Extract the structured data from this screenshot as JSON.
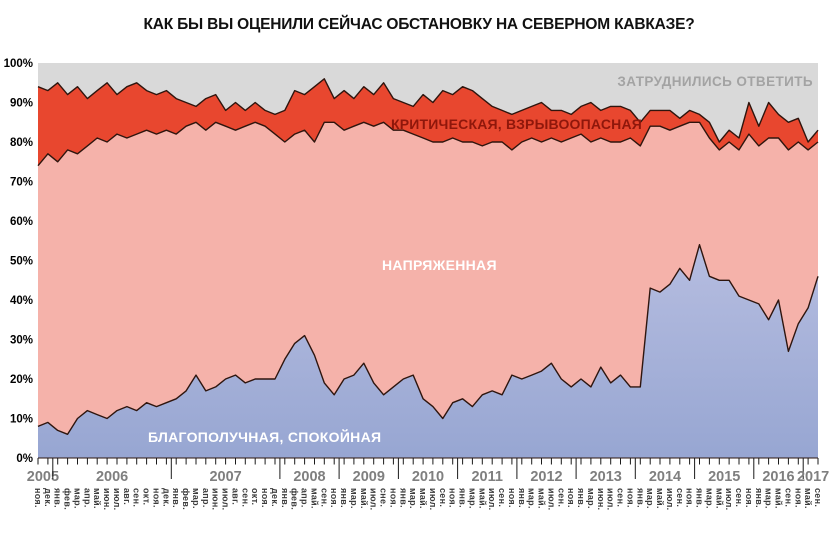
{
  "title": "КАК БЫ ВЫ ОЦЕНИЛИ СЕЙЧАС ОБСТАНОВКУ НА СЕВЕРНОМ КАВКАЗЕ?",
  "colors": {
    "background": "#ffffff",
    "no_answer_fill": "#d9d9d9",
    "critical_fill": "#e8472f",
    "tense_fill": "#f5b2aa",
    "calm_fill_top": "#b6bde0",
    "calm_fill_bottom": "#97a6d2",
    "outline": "#2e150e",
    "tick_color": "#1a1a1a",
    "title_color": "#111111",
    "year_label_color": "#7f7f7f",
    "month_label_color": "#3c3c3c",
    "y_axis_label_color": "#000000",
    "no_answer_label_color": "#a3a3a3",
    "critical_label_color": "#8f170b",
    "area_label_white": "#ffffff"
  },
  "chart_data": {
    "type": "area",
    "stacked": true,
    "ylim": [
      0,
      100
    ],
    "grid": false,
    "y_ticks": [
      "100%",
      "90%",
      "80%",
      "70%",
      "60%",
      "50%",
      "40%",
      "30%",
      "20%",
      "10%",
      "0%"
    ],
    "remainder_label": "ЗАТРУДНИЛИСЬ ОТВЕТИТЬ",
    "years": [
      {
        "label": "2005",
        "months": 2
      },
      {
        "label": "2006",
        "months": 12
      },
      {
        "label": "2007",
        "months": 11
      },
      {
        "label": "2008",
        "months": 6
      },
      {
        "label": "2009",
        "months": 6
      },
      {
        "label": "2010",
        "months": 6
      },
      {
        "label": "2011",
        "months": 6
      },
      {
        "label": "2012",
        "months": 6
      },
      {
        "label": "2013",
        "months": 6
      },
      {
        "label": "2014",
        "months": 6
      },
      {
        "label": "2015",
        "months": 6
      },
      {
        "label": "2016",
        "months": 5
      },
      {
        "label": "2017",
        "months": 2
      }
    ],
    "months": [
      "ноя.",
      "дек.",
      "янв.",
      "фев.",
      "мар.",
      "апр.",
      "май.",
      "июн.",
      "июл.",
      "авг.",
      "сен.",
      "окт.",
      "ноя.",
      "дек.",
      "янв.",
      "фев.",
      "мар.",
      "апр.",
      "июн.",
      "июл.",
      "авг.",
      "сен.",
      "окт.",
      "ноя.",
      "дек.",
      "янв.",
      "фев.",
      "апр.",
      "май.",
      "сен.",
      "ноя.",
      "янв.",
      "мар.",
      "май.",
      "июл.",
      "сне.",
      "ноя.",
      "янв.",
      "мар.",
      "май.",
      "июл.",
      "сен.",
      "ноя.",
      "янв.",
      "мар.",
      "май.",
      "июл.",
      "сен.",
      "ноя.",
      "янв.",
      "мар.",
      "май.",
      "июл.",
      "сен.",
      "ноя.",
      "янв.",
      "мар.",
      "июн.",
      "июл.",
      "сен.",
      "ноя.",
      "янв.",
      "мар.",
      "май.",
      "июл.",
      "сен.",
      "ноя.",
      "янв.",
      "мар.",
      "май.",
      "июл.",
      "сен.",
      "ноя.",
      "янв.",
      "мар.",
      "май.",
      "сен.",
      "ноя.",
      "май.",
      "сен."
    ],
    "series": [
      {
        "name": "БЛАГОПОЛУЧНАЯ, СПОКОЙНАЯ",
        "values": [
          8,
          9,
          7,
          6,
          10,
          12,
          11,
          10,
          12,
          13,
          12,
          14,
          13,
          14,
          15,
          17,
          21,
          17,
          18,
          20,
          21,
          19,
          20,
          20,
          20,
          25,
          29,
          31,
          26,
          19,
          16,
          20,
          21,
          24,
          19,
          16,
          18,
          20,
          21,
          15,
          13,
          10,
          14,
          15,
          13,
          16,
          17,
          16,
          21,
          20,
          21,
          22,
          24,
          20,
          18,
          20,
          18,
          23,
          19,
          21,
          18,
          18,
          43,
          42,
          44,
          48,
          45,
          54,
          46,
          45,
          45,
          41,
          40,
          39,
          35,
          40,
          27,
          34,
          38,
          46
        ]
      },
      {
        "name": "НАПРЯЖЕННАЯ",
        "values": [
          66,
          68,
          68,
          72,
          67,
          67,
          70,
          70,
          70,
          68,
          70,
          69,
          69,
          69,
          67,
          67,
          64,
          66,
          67,
          64,
          62,
          65,
          65,
          64,
          62,
          55,
          53,
          52,
          54,
          66,
          69,
          63,
          63,
          61,
          65,
          69,
          65,
          63,
          61,
          66,
          67,
          70,
          67,
          65,
          67,
          63,
          63,
          64,
          57,
          60,
          60,
          58,
          57,
          60,
          63,
          62,
          62,
          58,
          61,
          59,
          63,
          61,
          41,
          42,
          39,
          36,
          40,
          31,
          35,
          33,
          35,
          37,
          42,
          40,
          46,
          41,
          51,
          46,
          40,
          34
        ]
      },
      {
        "name": "КРИТИЧЕСКАЯ, ВЗРЫВООПАСНАЯ",
        "values": [
          20,
          16,
          20,
          14,
          17,
          12,
          12,
          15,
          10,
          13,
          13,
          10,
          10,
          10,
          9,
          6,
          4,
          8,
          7,
          4,
          7,
          4,
          5,
          4,
          5,
          8,
          11,
          9,
          14,
          11,
          6,
          10,
          7,
          9,
          8,
          10,
          8,
          7,
          7,
          11,
          10,
          13,
          11,
          14,
          13,
          12,
          9,
          8,
          9,
          8,
          8,
          10,
          7,
          8,
          6,
          7,
          10,
          7,
          9,
          9,
          7,
          6,
          4,
          4,
          5,
          2,
          3,
          2,
          4,
          2,
          3,
          3,
          8,
          5,
          9,
          6,
          7,
          6,
          2,
          3
        ]
      }
    ]
  }
}
